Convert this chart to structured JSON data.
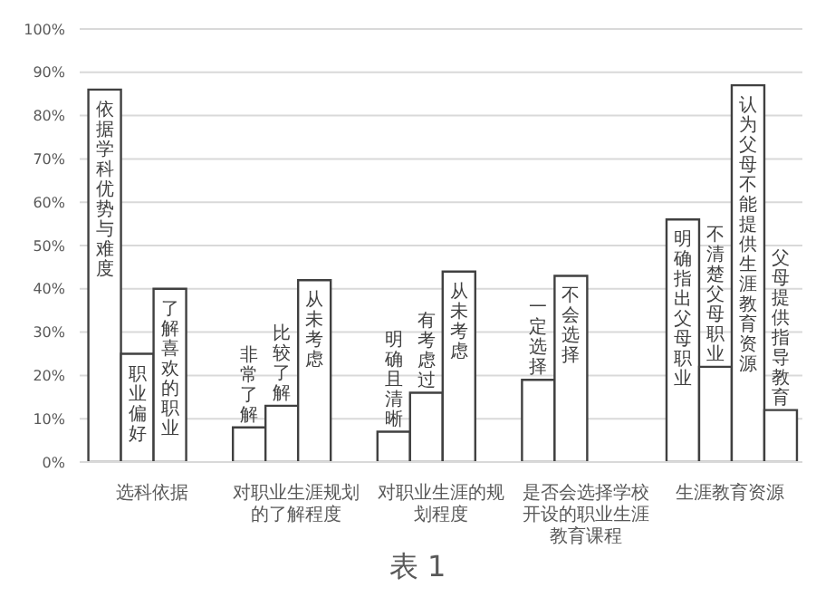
{
  "chart_data": {
    "type": "bar",
    "categories": [
      "选科依据",
      "对职业生涯规划的了解程度",
      "对职业生涯的规划程度",
      "是否会选择学校开设的职业生涯教育课程",
      "生涯教育资源"
    ],
    "series": [
      {
        "color": "#ffffff",
        "values": [
          86,
          8,
          7,
          19,
          56
        ],
        "value_labels": [
          "依据学科优势与难度",
          "非常了解",
          "明确且清晰",
          "一定选择",
          "明确指出父母职业"
        ]
      },
      {
        "color": "#ffffff",
        "values": [
          25,
          13,
          16,
          43,
          22
        ],
        "value_labels": [
          "职业偏好",
          "比较了解",
          "有考虑过",
          "不会选择",
          "不清楚父母职业"
        ]
      },
      {
        "color": "#ffffff",
        "values": [
          40,
          42,
          44,
          null,
          87
        ],
        "value_labels": [
          "了解喜欢的职业",
          "从未考虑",
          "从未考虑",
          null,
          "认为父母不能提供生涯教育资源"
        ]
      },
      {
        "color": "#ffffff",
        "values": [
          null,
          null,
          null,
          null,
          12
        ],
        "value_labels": [
          null,
          null,
          null,
          null,
          "父母提供指导教育"
        ]
      }
    ],
    "ylim": [
      0,
      100
    ],
    "yticks": [
      {
        "value": 0,
        "label": "0%"
      },
      {
        "value": 10,
        "label": "10%"
      },
      {
        "value": 20,
        "label": "20%"
      },
      {
        "value": 30,
        "label": "30%"
      },
      {
        "value": 40,
        "label": "40%"
      },
      {
        "value": 50,
        "label": "50%"
      },
      {
        "value": 60,
        "label": "60%"
      },
      {
        "value": 70,
        "label": "70%"
      },
      {
        "value": 80,
        "label": "80%"
      },
      {
        "value": 90,
        "label": "90%"
      },
      {
        "value": 100,
        "label": "100%"
      }
    ],
    "grid": "y",
    "annotations": [
      "表 1"
    ]
  }
}
